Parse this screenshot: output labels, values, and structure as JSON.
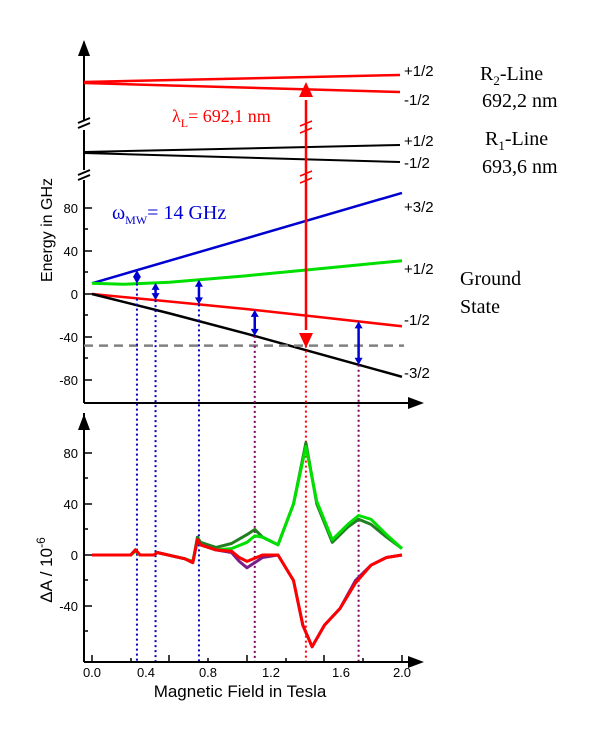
{
  "colors": {
    "red": "#ff0000",
    "black": "#000000",
    "blue": "#0000d0",
    "green": "#00e000",
    "darkgreen": "#208020",
    "purple": "#7a1f8a",
    "gray": "#808080",
    "dot_blue": "#0000c0",
    "dot_purple": "#800060"
  },
  "top_panel": {
    "r2_line": {
      "name_main": "R",
      "name_sub": "2",
      "name_rest": "-Line",
      "wavelength": "692,2 nm",
      "upper": "+1/2",
      "lower": "-1/2"
    },
    "r1_line": {
      "name_main": "R",
      "name_sub": "1",
      "name_rest": "-Line",
      "wavelength": "693,6 nm",
      "upper": "+1/2",
      "lower": "-1/2"
    },
    "laser": {
      "label_main": "λ",
      "label_sub": "L",
      "label_rest": "= 692,1 nm"
    },
    "microwave": {
      "label_main": "ω",
      "label_sub": "MW",
      "label_rest": "= 14 GHz"
    },
    "ground_state": {
      "line1": "Ground",
      "line2": "State",
      "levels": [
        "+3/2",
        "+1/2",
        "-1/2",
        "-3/2"
      ]
    },
    "ylabel": "Energy in GHz",
    "yticks": [
      "80",
      "40",
      "0",
      "-40",
      "-80"
    ]
  },
  "bottom_panel": {
    "ylabel_main": "ΔA / 10",
    "ylabel_exp": "-6",
    "yticks": [
      "80",
      "40",
      "0",
      "-40"
    ],
    "xlabel": "Magnetic Field in Tesla",
    "xticks": [
      "0.0",
      "0.4",
      "0.8",
      "1.2",
      "1.6",
      "2.0"
    ]
  },
  "chart_data": {
    "type": "line",
    "xlabel": "Magnetic Field in Tesla",
    "ylabel": "Energy in GHz",
    "xlim": [
      0,
      2.0
    ],
    "ylim": [
      -100,
      110
    ],
    "series": [
      {
        "x": [
          0,
          2.0
        ],
        "values": [
          10,
          94
        ]
      },
      {
        "x": [
          0,
          0.2,
          0.5,
          1.0,
          1.5,
          2.0
        ],
        "values": [
          10,
          9,
          11,
          17,
          24,
          31
        ]
      },
      {
        "x": [
          0,
          0.5,
          1.0,
          1.5,
          2.0
        ],
        "values": [
          0,
          -7,
          -14,
          -22,
          -30
        ]
      },
      {
        "x": [
          0,
          0.5,
          1.0,
          1.5,
          2.0
        ],
        "values": [
          0,
          -18,
          -37,
          -57,
          -77
        ]
      }
    ],
    "resonances_tesla": [
      0.29,
      0.41,
      0.69,
      1.05,
      1.38,
      1.72
    ],
    "laser_resonance_tesla": 1.38,
    "gs_reference_level_ghz": -48,
    "bottom_panel": {
      "ylabel": "ΔA / 10^-6",
      "ylim": [
        -70,
        110
      ],
      "xlim": [
        0,
        2.0
      ],
      "series": [
        {
          "x": [
            0,
            0.25,
            0.28,
            0.31,
            0.4,
            0.42,
            0.6,
            0.65,
            0.68,
            0.7,
            0.8,
            0.9,
            1.0,
            1.05,
            1.1,
            1.2,
            1.3,
            1.38,
            1.45,
            1.55,
            1.65,
            1.72,
            1.8,
            1.9,
            2.0
          ],
          "values": [
            0,
            0,
            4,
            0,
            0,
            2,
            -3,
            -6,
            14,
            10,
            6,
            9,
            16,
            20,
            14,
            8,
            40,
            88,
            40,
            10,
            22,
            28,
            24,
            14,
            5
          ]
        },
        {
          "x": [
            0,
            0.25,
            0.28,
            0.31,
            0.4,
            0.42,
            0.6,
            0.65,
            0.68,
            0.7,
            0.8,
            0.9,
            1.0,
            1.05,
            1.1,
            1.2,
            1.3,
            1.38,
            1.45,
            1.55,
            1.65,
            1.72,
            1.8,
            1.9,
            2.0
          ],
          "values": [
            0,
            0,
            3,
            0,
            0,
            2,
            -3,
            -5,
            12,
            8,
            4,
            5,
            10,
            15,
            14,
            8,
            40,
            85,
            42,
            12,
            24,
            31,
            28,
            16,
            5
          ]
        },
        {
          "x": [
            0,
            0.25,
            0.28,
            0.31,
            0.4,
            0.42,
            0.6,
            0.65,
            0.68,
            0.7,
            0.8,
            0.9,
            0.95,
            1.0,
            1.1,
            1.2,
            1.3,
            1.36,
            1.42,
            1.5,
            1.6,
            1.7,
            1.8,
            1.9,
            2.0
          ],
          "values": [
            0,
            0,
            4,
            0,
            0,
            2,
            -3,
            -6,
            12,
            8,
            4,
            2,
            -5,
            -10,
            -2,
            0,
            -20,
            -55,
            -72,
            -55,
            -42,
            -20,
            -8,
            -2,
            0
          ]
        },
        {
          "x": [
            0,
            0.25,
            0.28,
            0.31,
            0.4,
            0.42,
            0.6,
            0.65,
            0.68,
            0.7,
            0.8,
            0.9,
            0.95,
            1.0,
            1.1,
            1.2,
            1.3,
            1.36,
            1.42,
            1.5,
            1.6,
            1.7,
            1.8,
            1.9,
            2.0
          ],
          "values": [
            0,
            0,
            4,
            0,
            0,
            2,
            -3,
            -6,
            12,
            8,
            4,
            3,
            -2,
            -5,
            0,
            0,
            -20,
            -55,
            -72,
            -55,
            -42,
            -22,
            -8,
            -2,
            0
          ]
        }
      ]
    }
  }
}
